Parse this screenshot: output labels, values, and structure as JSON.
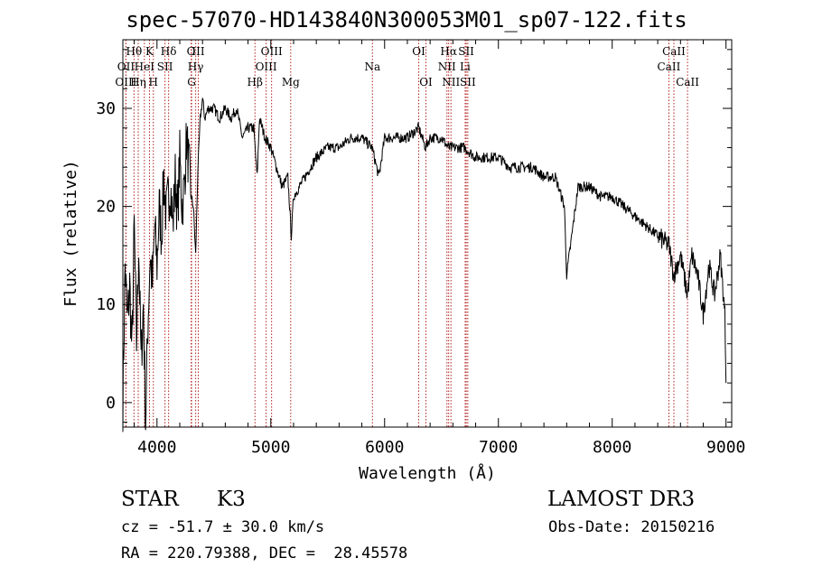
{
  "chart_data": {
    "type": "line",
    "title": "spec-57070-HD143840N300053M01_sp07-122.fits",
    "xlabel": "Wavelength (Å)",
    "ylabel": "Flux (relative)",
    "xlim": [
      3700,
      9050
    ],
    "ylim": [
      -2.5,
      37
    ],
    "xticks": [
      4000,
      5000,
      6000,
      7000,
      8000,
      9000
    ],
    "yticks": [
      0,
      10,
      20,
      30
    ],
    "series": [
      {
        "name": "flux",
        "x": [
          3700,
          3720,
          3740,
          3760,
          3780,
          3800,
          3820,
          3840,
          3860,
          3880,
          3900,
          3920,
          3940,
          3960,
          3980,
          4000,
          4020,
          4040,
          4060,
          4080,
          4100,
          4120,
          4140,
          4160,
          4180,
          4200,
          4220,
          4240,
          4260,
          4280,
          4300,
          4320,
          4340,
          4360,
          4380,
          4400,
          4420,
          4450,
          4500,
          4550,
          4600,
          4650,
          4700,
          4750,
          4800,
          4850,
          4880,
          4900,
          4950,
          5000,
          5050,
          5100,
          5150,
          5180,
          5200,
          5250,
          5300,
          5400,
          5500,
          5600,
          5700,
          5800,
          5890,
          5950,
          6000,
          6100,
          6200,
          6300,
          6360,
          6400,
          6500,
          6563,
          6600,
          6700,
          6800,
          6900,
          7000,
          7100,
          7200,
          7300,
          7400,
          7500,
          7580,
          7600,
          7700,
          7800,
          7900,
          8000,
          8100,
          8200,
          8300,
          8400,
          8500,
          8540,
          8600,
          8660,
          8700,
          8750,
          8800,
          8850,
          8900,
          8950,
          8990,
          9000
        ],
        "y": [
          0,
          14,
          8,
          12,
          5,
          18,
          6,
          16,
          4,
          10,
          -2,
          8,
          15,
          12,
          18,
          14,
          20,
          17,
          23,
          19,
          21,
          22,
          18,
          23,
          19,
          25,
          20,
          22,
          27,
          24,
          21,
          20,
          15,
          24,
          29,
          31,
          29,
          30,
          30,
          29,
          30,
          29,
          30,
          27,
          28,
          28,
          23,
          29,
          27,
          26,
          24,
          22,
          23,
          17,
          21,
          22,
          23,
          25,
          26,
          26,
          27,
          27,
          26,
          23,
          27,
          27,
          27,
          28,
          26,
          27,
          27,
          26,
          26,
          26,
          25,
          25,
          25,
          24,
          24,
          24,
          23,
          23,
          20,
          13,
          22,
          22,
          21,
          21,
          20,
          19,
          18,
          17,
          16,
          13,
          15,
          11,
          15,
          13,
          9,
          14,
          11,
          15,
          9,
          2
        ]
      }
    ],
    "lines": [
      {
        "label": "Hθ",
        "x": 3798,
        "row": 0
      },
      {
        "label": "OII",
        "x": 3727,
        "row": 1
      },
      {
        "label": "OIII",
        "x": 3727,
        "row": 2
      },
      {
        "label": "K",
        "x": 3934,
        "row": 0
      },
      {
        "label": "HeI",
        "x": 3889,
        "row": 1
      },
      {
        "label": "Hη",
        "x": 3835,
        "row": 2
      },
      {
        "label": "SII",
        "x": 4070,
        "row": 1
      },
      {
        "label": "H",
        "x": 3968,
        "row": 2
      },
      {
        "label": "Hδ",
        "x": 4102,
        "row": 0
      },
      {
        "label": "O",
        "x": 4300,
        "row": 0
      },
      {
        "label": "III",
        "x": 4363,
        "row": 0
      },
      {
        "label": "Hγ",
        "x": 4340,
        "row": 1
      },
      {
        "label": "G",
        "x": 4304,
        "row": 2
      },
      {
        "label": "OIII",
        "x": 5007,
        "row": 0
      },
      {
        "label": "OIII",
        "x": 4959,
        "row": 1
      },
      {
        "label": "Hβ",
        "x": 4861,
        "row": 2
      },
      {
        "label": "Mg",
        "x": 5175,
        "row": 2
      },
      {
        "label": "Na",
        "x": 5893,
        "row": 1
      },
      {
        "label": "OI",
        "x": 6300,
        "row": 0
      },
      {
        "label": "OI",
        "x": 6363,
        "row": 2
      },
      {
        "label": "Hα",
        "x": 6563,
        "row": 0
      },
      {
        "label": "SII",
        "x": 6717,
        "row": 0
      },
      {
        "label": "NII",
        "x": 6548,
        "row": 1
      },
      {
        "label": "Li",
        "x": 6708,
        "row": 1
      },
      {
        "label": "NII",
        "x": 6583,
        "row": 2
      },
      {
        "label": "SII",
        "x": 6731,
        "row": 2
      },
      {
        "label": "CaII",
        "x": 8542,
        "row": 0
      },
      {
        "label": "CaII",
        "x": 8498,
        "row": 1
      },
      {
        "label": "CaII",
        "x": 8662,
        "row": 2
      }
    ]
  },
  "info": {
    "object_type": "STAR",
    "subclass": "K3",
    "survey": "LAMOST DR3",
    "redshift": "cz = -51.7 ± 30.0 km/s",
    "obs_date": "Obs-Date: 20150216",
    "coords": "RA = 220.79388, DEC =  28.45578"
  },
  "colors": {
    "line_markers": "#b22222",
    "spectrum": "#000000",
    "axes": "#000000"
  }
}
